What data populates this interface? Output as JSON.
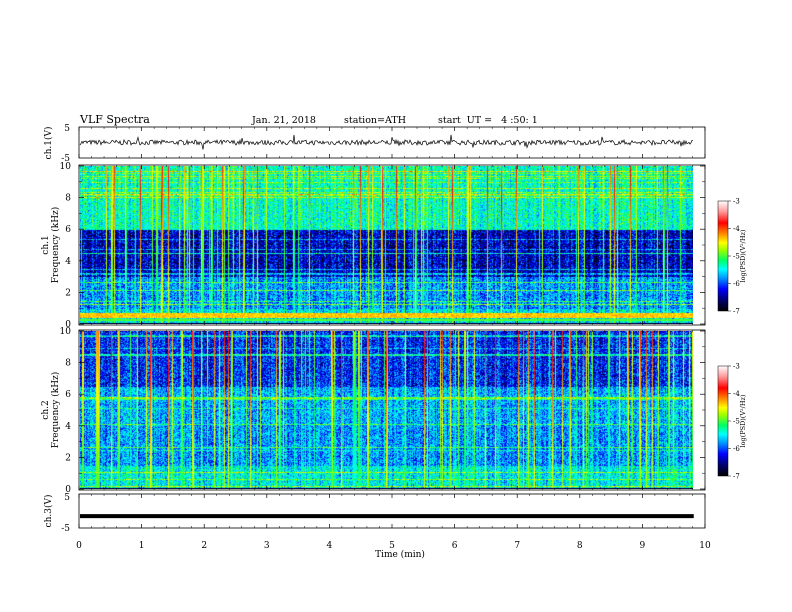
{
  "header": {
    "title": "VLF Spectra",
    "date": "Jan. 21, 2018",
    "station": "station=ATH",
    "start": "start  UT =   4 :50: 1"
  },
  "chart_data": {
    "type": "heatmap",
    "x_axis": {
      "label": "Time (min)",
      "range": [
        0,
        10
      ],
      "ticks": [
        "0",
        "1",
        "2",
        "3",
        "4",
        "5",
        "6",
        "7",
        "8",
        "9",
        "10"
      ],
      "data_end": 9.82
    },
    "panels": [
      {
        "id": "ch1-waveform",
        "type": "line",
        "ylabel": "ch.1(V)",
        "yticks": [
          "5",
          "-5"
        ],
        "ylim": [
          -5,
          5
        ],
        "baseline": 0,
        "trace_color": "#000000"
      },
      {
        "id": "ch1-spectrogram",
        "type": "heatmap",
        "ylabel_lines": [
          "ch.1",
          "Frequency (kHz)"
        ],
        "yticks": [
          "0",
          "2",
          "4",
          "6",
          "8",
          "10"
        ],
        "ylim": [
          0,
          10
        ],
        "colorbar": {
          "label": "log(PSD)(V²/Hz)",
          "ticks": [
            "-3",
            "-4",
            "-5",
            "-6",
            "-7"
          ],
          "range": [
            -7,
            -3
          ]
        }
      },
      {
        "id": "ch2-spectrogram",
        "type": "heatmap",
        "ylabel_lines": [
          "ch.2",
          "Frequency (kHz)"
        ],
        "yticks": [
          "0",
          "2",
          "4",
          "6",
          "8",
          "10"
        ],
        "ylim": [
          0,
          10
        ],
        "colorbar": {
          "label": "log(PSD)(V²/Hz)",
          "ticks": [
            "-3",
            "-4",
            "-5",
            "-6",
            "-7"
          ],
          "range": [
            -7,
            -3
          ]
        }
      },
      {
        "id": "ch3-waveform",
        "type": "line",
        "ylabel": "ch.3(V)",
        "yticks": [
          "5",
          "-5"
        ],
        "ylim": [
          -5,
          5
        ],
        "baseline": -1.5,
        "trace_color": "#000000"
      }
    ],
    "colormap": [
      "#000000",
      "#00006e",
      "#0000ff",
      "#0096ff",
      "#00ffff",
      "#00ff64",
      "#96ff00",
      "#ffff00",
      "#ff8c00",
      "#ff0000",
      "#ff9696",
      "#ffffff"
    ]
  }
}
